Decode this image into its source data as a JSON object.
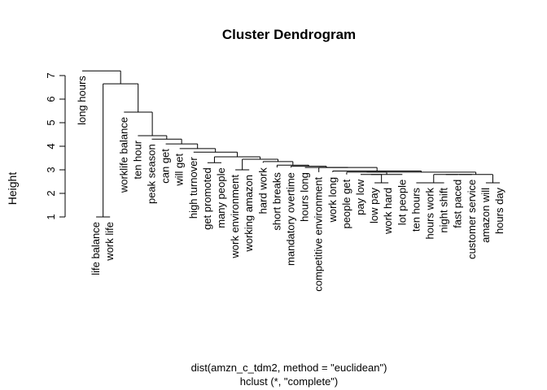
{
  "chart_data": {
    "type": "dendrogram",
    "title": "Cluster Dendrogram",
    "ylabel": "Height",
    "xlabel_lines": [
      "dist(amzn_c_tdm2, method = \"euclidean\")",
      "hclust (*, \"complete\")"
    ],
    "ylim": [
      1,
      7
    ],
    "yticks": [
      1,
      2,
      3,
      4,
      5,
      6,
      7
    ],
    "line_color": "#000000",
    "leaves": [
      {
        "label": "long hours",
        "height": 7.2
      },
      {
        "label": "life balance",
        "height": 1.0
      },
      {
        "label": "work life",
        "height": 1.0
      },
      {
        "label": "worklife balance",
        "height": 5.45
      },
      {
        "label": "ten hour",
        "height": 4.45
      },
      {
        "label": "peak season",
        "height": 4.3
      },
      {
        "label": "can get",
        "height": 4.1
      },
      {
        "label": "will get",
        "height": 3.9
      },
      {
        "label": "high turnover",
        "height": 3.75
      },
      {
        "label": "get promoted",
        "height": 3.3
      },
      {
        "label": "many people",
        "height": 3.3
      },
      {
        "label": "work environment",
        "height": 3.0
      },
      {
        "label": "working amazon",
        "height": 3.0
      },
      {
        "label": "hard work",
        "height": 3.3
      },
      {
        "label": "short breaks",
        "height": 3.1
      },
      {
        "label": "mandatory overtime",
        "height": 3.1
      },
      {
        "label": "hours long",
        "height": 3.1
      },
      {
        "label": "competitive environment",
        "height": 2.9
      },
      {
        "label": "work long",
        "height": 2.9
      },
      {
        "label": "people get",
        "height": 2.8
      },
      {
        "label": "pay low",
        "height": 2.8
      },
      {
        "label": "low pay",
        "height": 2.45
      },
      {
        "label": "work hard",
        "height": 2.45
      },
      {
        "label": "lot people",
        "height": 2.8
      },
      {
        "label": "ten hours",
        "height": 2.45
      },
      {
        "label": "hours work",
        "height": 2.45
      },
      {
        "label": "night shift",
        "height": 2.45
      },
      {
        "label": "fast paced",
        "height": 2.8
      },
      {
        "label": "customer service",
        "height": 2.8
      },
      {
        "label": "amazon will",
        "height": 2.45
      },
      {
        "label": "hours day",
        "height": 2.45
      }
    ],
    "merges": [
      {
        "left": "leaf:1",
        "right": "leaf:2",
        "height": 1.0
      },
      {
        "left": "leaf:21",
        "right": "leaf:22",
        "height": 2.45
      },
      {
        "left": "leaf:24",
        "right": "leaf:25",
        "height": 2.45
      },
      {
        "left": "merge:2",
        "right": "leaf:26",
        "height": 2.45
      },
      {
        "left": "leaf:29",
        "right": "leaf:30",
        "height": 2.45
      },
      {
        "left": "leaf:20",
        "right": "merge:1",
        "height": 2.8
      },
      {
        "left": "merge:5",
        "right": "leaf:23",
        "height": 2.8
      },
      {
        "left": "merge:3",
        "right": "leaf:27",
        "height": 2.8
      },
      {
        "left": "merge:7",
        "right": "leaf:28",
        "height": 2.8
      },
      {
        "left": "merge:8",
        "right": "merge:4",
        "height": 2.8
      },
      {
        "left": "leaf:19",
        "right": "merge:6",
        "height": 2.9
      },
      {
        "left": "merge:10",
        "right": "merge:9",
        "height": 2.9
      },
      {
        "left": "leaf:18",
        "right": "merge:11",
        "height": 2.95
      },
      {
        "left": "leaf:11",
        "right": "leaf:12",
        "height": 3.0
      },
      {
        "left": "leaf:17",
        "right": "merge:12",
        "height": 3.1
      },
      {
        "left": "leaf:16",
        "right": "merge:14",
        "height": 3.1
      },
      {
        "left": "leaf:15",
        "right": "merge:15",
        "height": 3.15
      },
      {
        "left": "leaf:14",
        "right": "merge:16",
        "height": 3.2
      },
      {
        "left": "leaf:9",
        "right": "leaf:10",
        "height": 3.3
      },
      {
        "left": "leaf:13",
        "right": "merge:17",
        "height": 3.35
      },
      {
        "left": "merge:13",
        "right": "merge:19",
        "height": 3.45
      },
      {
        "left": "merge:18",
        "right": "merge:20",
        "height": 3.55
      },
      {
        "left": "leaf:8",
        "right": "merge:21",
        "height": 3.75
      },
      {
        "left": "leaf:7",
        "right": "merge:22",
        "height": 3.9
      },
      {
        "left": "leaf:6",
        "right": "merge:23",
        "height": 4.1
      },
      {
        "left": "leaf:5",
        "right": "merge:24",
        "height": 4.3
      },
      {
        "left": "leaf:4",
        "right": "merge:25",
        "height": 4.45
      },
      {
        "left": "leaf:3",
        "right": "merge:26",
        "height": 5.45
      },
      {
        "left": "merge:0",
        "right": "merge:27",
        "height": 6.65
      },
      {
        "left": "leaf:0",
        "right": "merge:28",
        "height": 7.2
      }
    ]
  }
}
